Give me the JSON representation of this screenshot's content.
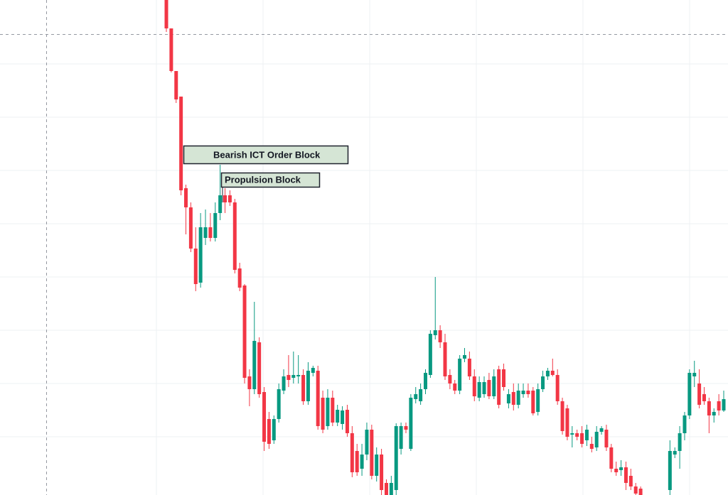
{
  "chart_data": {
    "type": "candlestick",
    "ylim": [
      0,
      700
    ],
    "up_color": "#089981",
    "down_color": "#f23645",
    "annotations": [
      "Bearish ICT Order Block",
      "Propulsion Block"
    ],
    "candles": [
      [
        700,
        700,
        655,
        660
      ],
      [
        660,
        660,
        598,
        600
      ],
      [
        600,
        600,
        555,
        560
      ],
      [
        564,
        564,
        425,
        432
      ],
      [
        435,
        440,
        370,
        408
      ],
      [
        408,
        415,
        345,
        350
      ],
      [
        350,
        380,
        290,
        300
      ],
      [
        302,
        400,
        295,
        380
      ],
      [
        365,
        405,
        355,
        380
      ],
      [
        380,
        400,
        360,
        365
      ],
      [
        365,
        415,
        360,
        400
      ],
      [
        400,
        468,
        390,
        425
      ],
      [
        425,
        435,
        400,
        415
      ],
      [
        425,
        432,
        410,
        415
      ],
      [
        415,
        420,
        315,
        320
      ],
      [
        322,
        330,
        290,
        295
      ],
      [
        298,
        300,
        160,
        168
      ],
      [
        170,
        180,
        128,
        152
      ],
      [
        152,
        275,
        145,
        220
      ],
      [
        218,
        225,
        140,
        145
      ],
      [
        148,
        155,
        65,
        78
      ],
      [
        110,
        120,
        68,
        75
      ],
      [
        80,
        115,
        75,
        110
      ],
      [
        110,
        160,
        105,
        152
      ],
      [
        150,
        180,
        145,
        170
      ],
      [
        172,
        200,
        155,
        165
      ],
      [
        168,
        205,
        160,
        172
      ],
      [
        170,
        200,
        160,
        172
      ],
      [
        172,
        180,
        130,
        135
      ],
      [
        135,
        190,
        130,
        178
      ],
      [
        175,
        185,
        170,
        182
      ],
      [
        178,
        185,
        95,
        100
      ],
      [
        140,
        150,
        90,
        95
      ],
      [
        100,
        152,
        95,
        140
      ],
      [
        140,
        150,
        100,
        105
      ],
      [
        105,
        130,
        100,
        123
      ],
      [
        103,
        128,
        95,
        122
      ],
      [
        123,
        130,
        85,
        90
      ],
      [
        90,
        100,
        28,
        35
      ],
      [
        65,
        75,
        30,
        35
      ],
      [
        40,
        75,
        30,
        60
      ],
      [
        60,
        105,
        52,
        95
      ],
      [
        95,
        102,
        25,
        30
      ],
      [
        30,
        70,
        22,
        60
      ],
      [
        60,
        68,
        3,
        10
      ],
      [
        20,
        25,
        3,
        3
      ],
      [
        3,
        30,
        3,
        20
      ],
      [
        10,
        104,
        3,
        100
      ],
      [
        68,
        105,
        60,
        100
      ],
      [
        100,
        105,
        90,
        95
      ],
      [
        68,
        145,
        65,
        140
      ],
      [
        138,
        155,
        132,
        145
      ],
      [
        135,
        160,
        130,
        152
      ],
      [
        152,
        180,
        145,
        175
      ],
      [
        172,
        235,
        168,
        230
      ],
      [
        228,
        310,
        222,
        235
      ],
      [
        235,
        242,
        210,
        218
      ],
      [
        218,
        230,
        165,
        170
      ],
      [
        172,
        180,
        152,
        160
      ],
      [
        160,
        165,
        145,
        150
      ],
      [
        150,
        200,
        145,
        195
      ],
      [
        195,
        210,
        190,
        200
      ],
      [
        195,
        205,
        165,
        170
      ],
      [
        170,
        180,
        135,
        142
      ],
      [
        140,
        170,
        135,
        162
      ],
      [
        145,
        170,
        140,
        162
      ],
      [
        165,
        175,
        138,
        142
      ],
      [
        142,
        180,
        138,
        170
      ],
      [
        180,
        185,
        125,
        130
      ],
      [
        180,
        188,
        150,
        155
      ],
      [
        132,
        152,
        125,
        145
      ],
      [
        148,
        160,
        122,
        130
      ],
      [
        130,
        160,
        125,
        150
      ],
      [
        145,
        160,
        140,
        150
      ],
      [
        150,
        160,
        140,
        145
      ],
      [
        150,
        155,
        115,
        118
      ],
      [
        120,
        160,
        115,
        152
      ],
      [
        152,
        178,
        148,
        170
      ],
      [
        170,
        182,
        165,
        178
      ],
      [
        178,
        195,
        170,
        172
      ],
      [
        172,
        180,
        130,
        135
      ],
      [
        135,
        140,
        88,
        93
      ],
      [
        125,
        130,
        80,
        85
      ],
      [
        88,
        100,
        70,
        90
      ],
      [
        90,
        95,
        80,
        85
      ],
      [
        90,
        100,
        70,
        75
      ],
      [
        80,
        102,
        72,
        95
      ],
      [
        75,
        85,
        63,
        68
      ],
      [
        70,
        100,
        65,
        92
      ],
      [
        92,
        100,
        88,
        97
      ],
      [
        95,
        102,
        65,
        70
      ],
      [
        70,
        75,
        35,
        40
      ],
      [
        40,
        50,
        30,
        35
      ],
      [
        38,
        52,
        30,
        42
      ],
      [
        42,
        50,
        10,
        20
      ],
      [
        30,
        40,
        10,
        15
      ],
      [
        15,
        20,
        3,
        5
      ],
      [
        12,
        15,
        3,
        3
      ],
      null,
      null,
      null,
      null,
      null,
      [
        10,
        80,
        3,
        65
      ],
      [
        60,
        70,
        55,
        65
      ],
      [
        65,
        100,
        40,
        90
      ],
      [
        90,
        120,
        80,
        115
      ],
      [
        115,
        180,
        110,
        175
      ],
      [
        170,
        192,
        155,
        175
      ],
      [
        160,
        180,
        125,
        130
      ],
      [
        145,
        155,
        130,
        135
      ],
      [
        135,
        140,
        90,
        115
      ],
      [
        115,
        125,
        105,
        120
      ],
      [
        135,
        145,
        115,
        122
      ],
      [
        122,
        150,
        120,
        138
      ]
    ]
  }
}
